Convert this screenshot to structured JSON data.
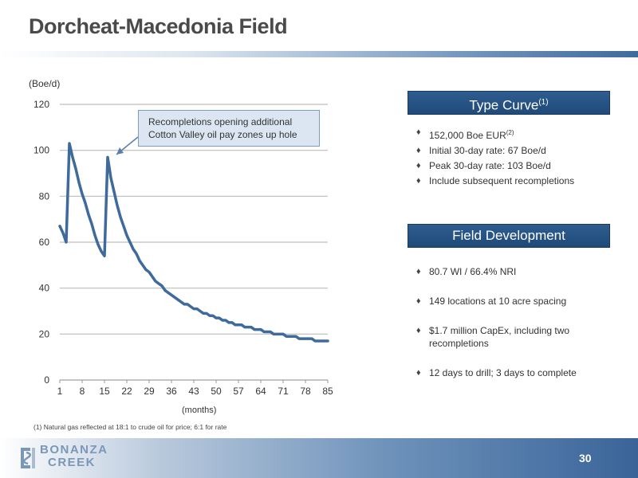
{
  "slide": {
    "title": "Dorcheat-Macedonia Field",
    "page_number": "30"
  },
  "chart_data": {
    "type": "line",
    "ylabel": "(Boe/d)",
    "xlabel": "(months)",
    "ylim": [
      0,
      120
    ],
    "xlim": [
      1,
      85
    ],
    "y_ticks": [
      "0",
      "20",
      "40",
      "60",
      "80",
      "100",
      "120"
    ],
    "x_ticks": [
      "1",
      "8",
      "15",
      "22",
      "29",
      "36",
      "43",
      "50",
      "57",
      "64",
      "71",
      "78",
      "85"
    ],
    "grid": true,
    "series": [
      {
        "color": "#3f6a9c",
        "x": [
          1,
          2,
          3,
          4,
          5,
          6,
          7,
          8,
          9,
          10,
          11,
          12,
          13,
          14,
          15,
          16,
          17,
          18,
          19,
          20,
          21,
          22,
          23,
          24,
          25,
          26,
          27,
          28,
          29,
          30,
          31,
          32,
          33,
          34,
          35,
          36,
          37,
          38,
          39,
          40,
          41,
          42,
          43,
          44,
          45,
          46,
          47,
          48,
          49,
          50,
          51,
          52,
          53,
          54,
          55,
          56,
          57,
          58,
          59,
          60,
          61,
          62,
          63,
          64,
          65,
          66,
          67,
          68,
          69,
          70,
          71,
          72,
          73,
          74,
          75,
          76,
          77,
          78,
          79,
          80,
          81,
          82,
          83,
          84,
          85
        ],
        "y": [
          67,
          64,
          60,
          103,
          97,
          92,
          86,
          81,
          77,
          72,
          68,
          63,
          59,
          56,
          54,
          97,
          88,
          82,
          76,
          71,
          67,
          63,
          60,
          57,
          55,
          52,
          50,
          48,
          47,
          45,
          43,
          42,
          41,
          39,
          38,
          37,
          36,
          35,
          34,
          33,
          33,
          32,
          31,
          31,
          30,
          29,
          29,
          28,
          28,
          27,
          27,
          26,
          26,
          25,
          25,
          24,
          24,
          24,
          23,
          23,
          23,
          22,
          22,
          22,
          21,
          21,
          21,
          20,
          20,
          20,
          20,
          19,
          19,
          19,
          19,
          18,
          18,
          18,
          18,
          18,
          17,
          17,
          17,
          17,
          17
        ]
      }
    ],
    "annotation": {
      "line1": "Recompletions opening additional",
      "line2": "Cotton Valley oil pay zones up hole"
    },
    "footnote": "(1)   Natural gas reflected at 18:1 to crude oil for price; 6:1 for rate"
  },
  "type_curve": {
    "header": "Type Curve",
    "header_sup": "(1)",
    "bullet_mark": "♦",
    "b1": "152,000 Boe EUR",
    "b1_sup": "(2)",
    "b2": "Initial 30-day rate: 67 Boe/d",
    "b3": "Peak 30-day rate: 103 Boe/d",
    "b4": "Include subsequent recompletions"
  },
  "field_development": {
    "header": "Field Development",
    "items": [
      "80.7 WI / 66.4% NRI",
      "149 locations at 10 acre spacing",
      "$1.7 million CapEx, including two recompletions",
      "12 days to drill; 3 days to complete"
    ]
  },
  "logo": {
    "line1": "BONANZA",
    "line2": "CREEK"
  }
}
